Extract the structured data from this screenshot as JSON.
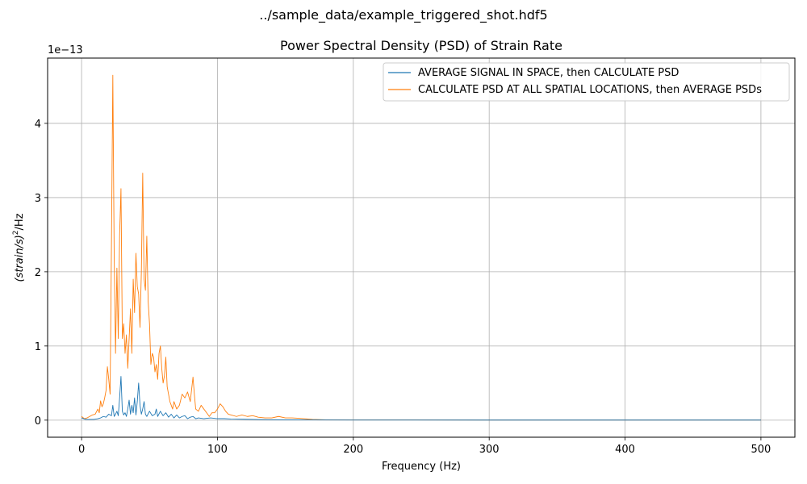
{
  "figure": {
    "suptitle": "../sample_data/example_triggered_shot.hdf5"
  },
  "chart_data": {
    "type": "line",
    "title": "Power Spectral Density (PSD) of Strain Rate",
    "xlabel": "Frequency (Hz)",
    "ylabel": "(strain/s)²/Hz",
    "y_offset_label": "1e−13",
    "xlim": [
      -25,
      525
    ],
    "ylim": [
      -0.23,
      4.88
    ],
    "y_scale_exponent": -13,
    "grid": true,
    "legend_position": "upper-right",
    "x_ticks": [
      0,
      100,
      200,
      300,
      400,
      500
    ],
    "y_ticks": [
      0,
      1,
      2,
      3,
      4
    ],
    "colors": {
      "series_1": "#1f77b4",
      "series_2": "#ff7f0e"
    },
    "series": [
      {
        "name": "AVERAGE SIGNAL IN SPACE, then CALCULATE PSD",
        "color": "#1f77b4",
        "points": [
          [
            0,
            0.03
          ],
          [
            3,
            0.01
          ],
          [
            6,
            0.01
          ],
          [
            9,
            0.01
          ],
          [
            12,
            0.02
          ],
          [
            14,
            0.03
          ],
          [
            16,
            0.05
          ],
          [
            18,
            0.04
          ],
          [
            20,
            0.08
          ],
          [
            22,
            0.06
          ],
          [
            23,
            0.2
          ],
          [
            24,
            0.05
          ],
          [
            25,
            0.08
          ],
          [
            26,
            0.12
          ],
          [
            27,
            0.06
          ],
          [
            28,
            0.3
          ],
          [
            29,
            0.59
          ],
          [
            30,
            0.12
          ],
          [
            31,
            0.07
          ],
          [
            32,
            0.1
          ],
          [
            33,
            0.05
          ],
          [
            34,
            0.15
          ],
          [
            35,
            0.27
          ],
          [
            36,
            0.08
          ],
          [
            37,
            0.2
          ],
          [
            38,
            0.1
          ],
          [
            39,
            0.3
          ],
          [
            40,
            0.07
          ],
          [
            41,
            0.25
          ],
          [
            42,
            0.5
          ],
          [
            43,
            0.2
          ],
          [
            44,
            0.08
          ],
          [
            45,
            0.15
          ],
          [
            46,
            0.25
          ],
          [
            47,
            0.08
          ],
          [
            48,
            0.05
          ],
          [
            50,
            0.12
          ],
          [
            52,
            0.06
          ],
          [
            54,
            0.08
          ],
          [
            55,
            0.15
          ],
          [
            56,
            0.05
          ],
          [
            58,
            0.12
          ],
          [
            60,
            0.06
          ],
          [
            62,
            0.1
          ],
          [
            64,
            0.04
          ],
          [
            66,
            0.08
          ],
          [
            68,
            0.03
          ],
          [
            70,
            0.07
          ],
          [
            72,
            0.03
          ],
          [
            74,
            0.05
          ],
          [
            76,
            0.06
          ],
          [
            78,
            0.02
          ],
          [
            80,
            0.04
          ],
          [
            82,
            0.05
          ],
          [
            84,
            0.02
          ],
          [
            86,
            0.03
          ],
          [
            90,
            0.02
          ],
          [
            95,
            0.03
          ],
          [
            100,
            0.02
          ],
          [
            105,
            0.02
          ],
          [
            110,
            0.015
          ],
          [
            120,
            0.012
          ],
          [
            130,
            0.008
          ],
          [
            140,
            0.006
          ],
          [
            150,
            0.005
          ],
          [
            160,
            0.004
          ],
          [
            170,
            0.003
          ],
          [
            200,
            0.002
          ],
          [
            300,
            0.001
          ],
          [
            400,
            0.001
          ],
          [
            500,
            0.001
          ]
        ]
      },
      {
        "name": "CALCULATE PSD AT ALL SPATIAL LOCATIONS, then AVERAGE PSDs",
        "color": "#ff7f0e",
        "points": [
          [
            0,
            0.05
          ],
          [
            2,
            0.02
          ],
          [
            4,
            0.03
          ],
          [
            6,
            0.05
          ],
          [
            8,
            0.07
          ],
          [
            10,
            0.08
          ],
          [
            12,
            0.15
          ],
          [
            13,
            0.1
          ],
          [
            14,
            0.26
          ],
          [
            15,
            0.18
          ],
          [
            16,
            0.22
          ],
          [
            17,
            0.3
          ],
          [
            18,
            0.4
          ],
          [
            19,
            0.72
          ],
          [
            20,
            0.55
          ],
          [
            21,
            0.35
          ],
          [
            22,
            2.4
          ],
          [
            23,
            4.65
          ],
          [
            24,
            2.2
          ],
          [
            25,
            0.9
          ],
          [
            26,
            2.05
          ],
          [
            27,
            1.1
          ],
          [
            28,
            2.5
          ],
          [
            29,
            3.12
          ],
          [
            30,
            1.1
          ],
          [
            31,
            1.3
          ],
          [
            32,
            0.9
          ],
          [
            33,
            1.15
          ],
          [
            34,
            0.7
          ],
          [
            35,
            1.1
          ],
          [
            36,
            1.5
          ],
          [
            37,
            0.9
          ],
          [
            38,
            1.9
          ],
          [
            39,
            1.45
          ],
          [
            40,
            2.25
          ],
          [
            41,
            1.8
          ],
          [
            42,
            1.7
          ],
          [
            43,
            1.25
          ],
          [
            44,
            2.0
          ],
          [
            45,
            3.33
          ],
          [
            46,
            1.9
          ],
          [
            47,
            1.75
          ],
          [
            48,
            2.48
          ],
          [
            49,
            1.6
          ],
          [
            50,
            1.3
          ],
          [
            51,
            0.75
          ],
          [
            52,
            0.9
          ],
          [
            53,
            0.85
          ],
          [
            54,
            0.65
          ],
          [
            55,
            0.75
          ],
          [
            56,
            0.55
          ],
          [
            57,
            0.9
          ],
          [
            58,
            1.0
          ],
          [
            59,
            0.7
          ],
          [
            60,
            0.5
          ],
          [
            61,
            0.6
          ],
          [
            62,
            0.85
          ],
          [
            63,
            0.45
          ],
          [
            64,
            0.35
          ],
          [
            65,
            0.25
          ],
          [
            66,
            0.2
          ],
          [
            67,
            0.15
          ],
          [
            68,
            0.25
          ],
          [
            69,
            0.2
          ],
          [
            70,
            0.15
          ],
          [
            72,
            0.2
          ],
          [
            74,
            0.35
          ],
          [
            76,
            0.3
          ],
          [
            78,
            0.38
          ],
          [
            80,
            0.25
          ],
          [
            82,
            0.58
          ],
          [
            83,
            0.35
          ],
          [
            84,
            0.15
          ],
          [
            86,
            0.12
          ],
          [
            88,
            0.2
          ],
          [
            90,
            0.15
          ],
          [
            92,
            0.1
          ],
          [
            94,
            0.05
          ],
          [
            96,
            0.1
          ],
          [
            98,
            0.1
          ],
          [
            100,
            0.15
          ],
          [
            102,
            0.22
          ],
          [
            104,
            0.18
          ],
          [
            106,
            0.12
          ],
          [
            108,
            0.08
          ],
          [
            110,
            0.07
          ],
          [
            114,
            0.05
          ],
          [
            118,
            0.07
          ],
          [
            122,
            0.05
          ],
          [
            126,
            0.06
          ],
          [
            130,
            0.04
          ],
          [
            135,
            0.03
          ],
          [
            140,
            0.03
          ],
          [
            145,
            0.05
          ],
          [
            150,
            0.03
          ],
          [
            155,
            0.03
          ],
          [
            160,
            0.025
          ],
          [
            170,
            0.01
          ],
          [
            180,
            0.005
          ],
          [
            200,
            0.003
          ],
          [
            300,
            0.002
          ],
          [
            400,
            0.002
          ],
          [
            500,
            0.002
          ]
        ]
      }
    ]
  }
}
